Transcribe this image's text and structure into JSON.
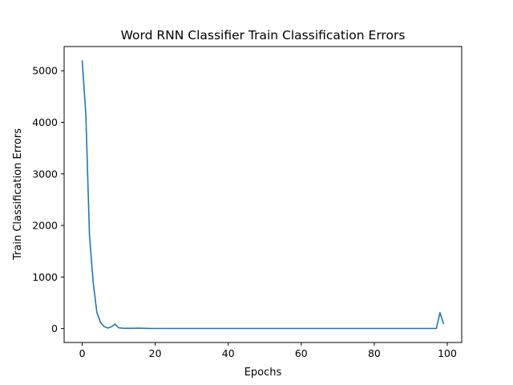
{
  "chart_data": {
    "type": "line",
    "title": "Word RNN Classifier Train Classification Errors",
    "xlabel": "Epochs",
    "ylabel": "Train Classification Errors",
    "xlim": [
      -4.95,
      103.95
    ],
    "ylim": [
      -270,
      5470
    ],
    "xticks": [
      0,
      20,
      40,
      60,
      80,
      100
    ],
    "yticks": [
      0,
      1000,
      2000,
      3000,
      4000,
      5000
    ],
    "grid": false,
    "line_color": "#1f77b4",
    "series": [
      {
        "x": [
          0,
          1,
          2,
          3,
          4,
          5,
          6,
          7,
          8,
          9,
          10,
          11,
          12,
          13,
          14,
          15,
          16,
          17,
          18,
          19,
          20,
          21,
          22,
          23,
          24,
          25,
          26,
          27,
          28,
          29,
          30,
          31,
          32,
          33,
          34,
          35,
          36,
          37,
          38,
          39,
          40,
          41,
          42,
          43,
          44,
          45,
          46,
          47,
          48,
          49,
          50,
          51,
          52,
          53,
          54,
          55,
          56,
          57,
          58,
          59,
          60,
          61,
          62,
          63,
          64,
          65,
          66,
          67,
          68,
          69,
          70,
          71,
          72,
          73,
          74,
          75,
          76,
          77,
          78,
          79,
          80,
          81,
          82,
          83,
          84,
          85,
          86,
          87,
          88,
          89,
          90,
          91,
          92,
          93,
          94,
          95,
          96,
          97,
          98,
          99
        ],
        "values": [
          5200,
          4150,
          1800,
          900,
          320,
          120,
          40,
          10,
          35,
          85,
          15,
          8,
          5,
          5,
          5,
          8,
          7,
          5,
          3,
          2,
          2,
          2,
          2,
          2,
          2,
          2,
          2,
          2,
          2,
          2,
          2,
          2,
          2,
          2,
          2,
          2,
          2,
          2,
          2,
          2,
          2,
          2,
          2,
          2,
          2,
          2,
          2,
          2,
          2,
          2,
          2,
          2,
          2,
          2,
          2,
          2,
          2,
          2,
          2,
          2,
          2,
          2,
          2,
          2,
          2,
          2,
          2,
          2,
          2,
          2,
          2,
          2,
          2,
          2,
          2,
          2,
          2,
          2,
          2,
          2,
          2,
          2,
          2,
          2,
          2,
          2,
          2,
          2,
          2,
          2,
          2,
          2,
          2,
          2,
          2,
          2,
          2,
          2,
          310,
          90
        ]
      }
    ]
  }
}
